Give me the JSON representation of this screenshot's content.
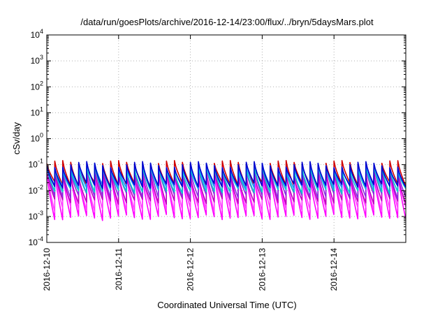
{
  "chart_data": {
    "type": "line",
    "title": "/data/run/goesPlots/archive/2016-12-14/23:00/flux/../bryn/5daysMars.plot",
    "xlabel": "Coordinated Universal Time (UTC)",
    "ylabel": "cSv/day",
    "y_scale": "log",
    "ylim": [
      0.0001,
      10000
    ],
    "y_ticks": [
      {
        "base": "10",
        "exp": "-4"
      },
      {
        "base": "10",
        "exp": "-3"
      },
      {
        "base": "10",
        "exp": "-2"
      },
      {
        "base": "10",
        "exp": "-1"
      },
      {
        "base": "10",
        "exp": "0"
      },
      {
        "base": "10",
        "exp": "1"
      },
      {
        "base": "10",
        "exp": "2"
      },
      {
        "base": "10",
        "exp": "3"
      },
      {
        "base": "10",
        "exp": "4"
      }
    ],
    "x_range": [
      "2016-12-10",
      "2016-12-15"
    ],
    "x_ticks": [
      "2016-12-10",
      "2016-12-11",
      "2016-12-12",
      "2016-12-13",
      "2016-12-14"
    ],
    "grid": true,
    "sawtooth_cycles_per_day": 9,
    "series": [
      {
        "color": "#d00000",
        "peak": 0.11,
        "trough": 0.022
      },
      {
        "color": "#ff00ff",
        "peak": 0.05,
        "trough": 0.0012
      },
      {
        "color": "#ff40ff",
        "peak": 0.06,
        "trough": 0.0025
      },
      {
        "color": "#c000c0",
        "peak": 0.045,
        "trough": 0.005
      },
      {
        "color": "#8a2be2",
        "peak": 0.07,
        "trough": 0.008
      },
      {
        "color": "#00cccc",
        "peak": 0.075,
        "trough": 0.012
      },
      {
        "color": "#1e90ff",
        "peak": 0.09,
        "trough": 0.018
      },
      {
        "color": "#0000cd",
        "peak": 0.1,
        "trough": 0.02
      }
    ]
  }
}
